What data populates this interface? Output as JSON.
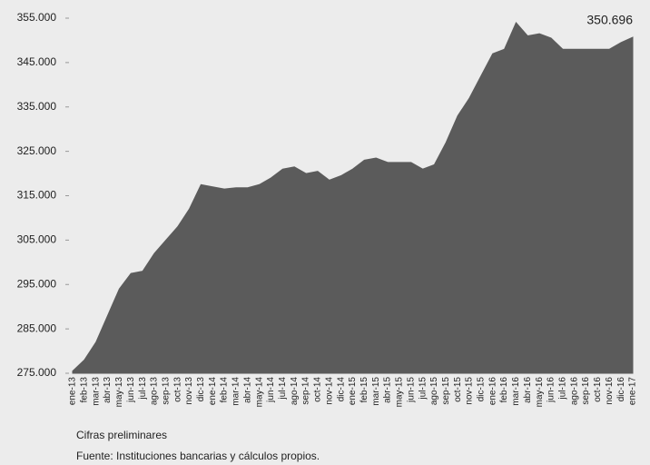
{
  "chart_data": {
    "type": "area",
    "categories": [
      "ene-13",
      "feb-13",
      "mar-13",
      "abr-13",
      "may-13",
      "jun-13",
      "jul-13",
      "ago-13",
      "sep-13",
      "oct-13",
      "nov-13",
      "dic-13",
      "ene-14",
      "feb-14",
      "mar-14",
      "abr-14",
      "may-14",
      "jun-14",
      "jul-14",
      "ago-14",
      "sep-14",
      "oct-14",
      "nov-14",
      "dic-14",
      "ene-15",
      "feb-15",
      "mar-15",
      "abr-15",
      "may-15",
      "jun-15",
      "jul-15",
      "ago-15",
      "sep-15",
      "oct-15",
      "nov-15",
      "dic-15",
      "ene-16",
      "feb-16",
      "mar-16",
      "abr-16",
      "may-16",
      "jun-16",
      "jul-16",
      "ago-16",
      "sep-16",
      "oct-16",
      "nov-16",
      "dic-16",
      "ene-17"
    ],
    "values": [
      275500,
      278000,
      282000,
      288000,
      294000,
      297500,
      298000,
      302000,
      305000,
      308000,
      312000,
      317500,
      317000,
      316500,
      316800,
      316800,
      317500,
      319000,
      321000,
      321500,
      320000,
      320500,
      318500,
      319500,
      321000,
      323000,
      323500,
      322500,
      322500,
      322500,
      321000,
      322000,
      327000,
      333000,
      337000,
      342000,
      347000,
      348000,
      354000,
      351000,
      351500,
      350500,
      348000,
      348000,
      348000,
      348000,
      348000,
      349500,
      350696
    ],
    "value_labels": [
      null,
      null,
      null,
      null,
      null,
      null,
      null,
      null,
      null,
      null,
      null,
      null,
      null,
      null,
      null,
      null,
      null,
      null,
      null,
      null,
      null,
      null,
      null,
      null,
      null,
      null,
      null,
      null,
      null,
      null,
      null,
      null,
      null,
      null,
      null,
      null,
      null,
      null,
      null,
      null,
      null,
      null,
      null,
      null,
      null,
      null,
      null,
      null,
      "350.696"
    ],
    "color": "#5b5b5b",
    "ylim": [
      275000,
      355000
    ],
    "yticks": [
      {
        "value": 275000,
        "label": "275.000"
      },
      {
        "value": 285000,
        "label": "285.000"
      },
      {
        "value": 295000,
        "label": "295.000"
      },
      {
        "value": 305000,
        "label": "305.000"
      },
      {
        "value": 315000,
        "label": "315.000"
      },
      {
        "value": 325000,
        "label": "325.000"
      },
      {
        "value": 335000,
        "label": "335.000"
      },
      {
        "value": 345000,
        "label": "345.000"
      },
      {
        "value": 355000,
        "label": "355.000"
      }
    ],
    "notes": [
      "Cifras preliminares",
      "Fuente: Instituciones bancarias y cálculos propios."
    ]
  }
}
